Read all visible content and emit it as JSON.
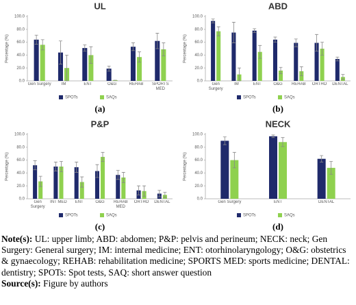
{
  "chart_data": [
    {
      "type": "bar",
      "title": "UL",
      "panel_label": "(a)",
      "y_label": "Percentage (%)",
      "categories": [
        "Gen Surgery",
        "IM",
        "ENT",
        "O&G",
        "REHAB",
        "SPORTS MED"
      ],
      "series": [
        {
          "name": "SPOTs",
          "color": "#1f2a6b",
          "values": [
            64,
            44,
            51,
            19,
            53,
            62
          ],
          "errors": [
            7,
            18,
            5,
            4,
            6,
            12
          ]
        },
        {
          "name": "SAQs",
          "color": "#8fd14f",
          "values": [
            56,
            20,
            40,
            1,
            37,
            49
          ],
          "errors": [
            8,
            20,
            13,
            0,
            8,
            10
          ]
        }
      ],
      "ylim": [
        0,
        100
      ],
      "yticks": [
        {
          "value": 0,
          "label": "0.0"
        },
        {
          "value": 20,
          "label": "20.0"
        },
        {
          "value": 40,
          "label": "40.0"
        },
        {
          "value": 60,
          "label": "60.0"
        },
        {
          "value": 80,
          "label": "80.0"
        },
        {
          "value": 100,
          "label": "100.0"
        }
      ],
      "legend": "bottom"
    },
    {
      "type": "bar",
      "title": "ABD",
      "panel_label": "(b)",
      "y_label": "Percentage (%)",
      "categories": [
        "Gen Surgery",
        "IM",
        "ENT",
        "O&G",
        "REHAB",
        "ORTHO",
        "DENTAL"
      ],
      "series": [
        {
          "name": "SPOTs",
          "color": "#1f2a6b",
          "values": [
            93,
            75,
            78,
            64,
            59,
            59,
            34
          ],
          "errors": [
            3,
            16,
            3,
            4,
            6,
            13,
            3
          ]
        },
        {
          "name": "SAQs",
          "color": "#8fd14f",
          "values": [
            77,
            10,
            45,
            16,
            15,
            50,
            6
          ],
          "errors": [
            7,
            10,
            10,
            5,
            7,
            10,
            4
          ]
        }
      ],
      "ylim": [
        0,
        100
      ],
      "yticks": [
        {
          "value": 0,
          "label": "0.0"
        },
        {
          "value": 20,
          "label": "20.0"
        },
        {
          "value": 40,
          "label": "40.0"
        },
        {
          "value": 60,
          "label": "60.0"
        },
        {
          "value": 80,
          "label": "80.0"
        },
        {
          "value": 100,
          "label": "100.0"
        }
      ],
      "legend": "bottom"
    },
    {
      "type": "bar",
      "title": "P&P",
      "panel_label": "(c)",
      "y_label": "Percentage (%)",
      "categories": [
        "Gen Surgery",
        "INT MED",
        "ENT",
        "O&G",
        "REHAB MED",
        "ORTHO",
        "DENTAL"
      ],
      "series": [
        {
          "name": "SPOTs",
          "color": "#1f2a6b",
          "values": [
            52,
            50,
            49,
            43,
            37,
            13,
            8
          ],
          "errors": [
            7,
            7,
            8,
            10,
            7,
            7,
            5
          ]
        },
        {
          "name": "SAQs",
          "color": "#8fd14f",
          "values": [
            27,
            50,
            26,
            65,
            33,
            12,
            6
          ],
          "errors": [
            8,
            8,
            8,
            7,
            8,
            8,
            4
          ]
        }
      ],
      "ylim": [
        0,
        100
      ],
      "yticks": [
        {
          "value": 0,
          "label": "0.0"
        },
        {
          "value": 20,
          "label": "20.0"
        },
        {
          "value": 40,
          "label": "40.0"
        },
        {
          "value": 60,
          "label": "60.0"
        },
        {
          "value": 80,
          "label": "80.0"
        },
        {
          "value": 100,
          "label": "100.0"
        }
      ],
      "legend": "bottom"
    },
    {
      "type": "bar",
      "title": "NECK",
      "panel_label": "(d)",
      "y_label": "Percentage (%)",
      "categories": [
        "Gen Surgery",
        "ENT",
        "DENTAL"
      ],
      "series": [
        {
          "name": "SPOTs",
          "color": "#1f2a6b",
          "values": [
            90,
            97,
            62
          ],
          "errors": [
            6,
            2,
            5
          ]
        },
        {
          "name": "SAQs",
          "color": "#8fd14f",
          "values": [
            60,
            88,
            48
          ],
          "errors": [
            12,
            7,
            10
          ]
        }
      ],
      "ylim": [
        0,
        100
      ],
      "yticks": [
        {
          "value": 0,
          "label": "0.0"
        },
        {
          "value": 20,
          "label": "20.0"
        },
        {
          "value": 40,
          "label": "40.0"
        },
        {
          "value": 60,
          "label": "60.0"
        },
        {
          "value": 80,
          "label": "80.0"
        },
        {
          "value": 100,
          "label": "100.0"
        }
      ],
      "legend": "bottom"
    }
  ],
  "notes": [
    {
      "label": "Note(s):",
      "text": "UL: upper limb; ABD: abdomen; P&P: pelvis and perineum; NECK: neck; Gen Surgery: General surgery; IM: internal medicine; ENT: otorhinolaryngology; O&G: obstetrics & gynaecology; REHAB: rehabilitation medicine; SPORTS MED: sports medicine; DENTAL: dentistry; SPOTs: Spot tests, SAQ: short answer question"
    },
    {
      "label": "Source(s):",
      "text": "Figure by authors"
    }
  ]
}
